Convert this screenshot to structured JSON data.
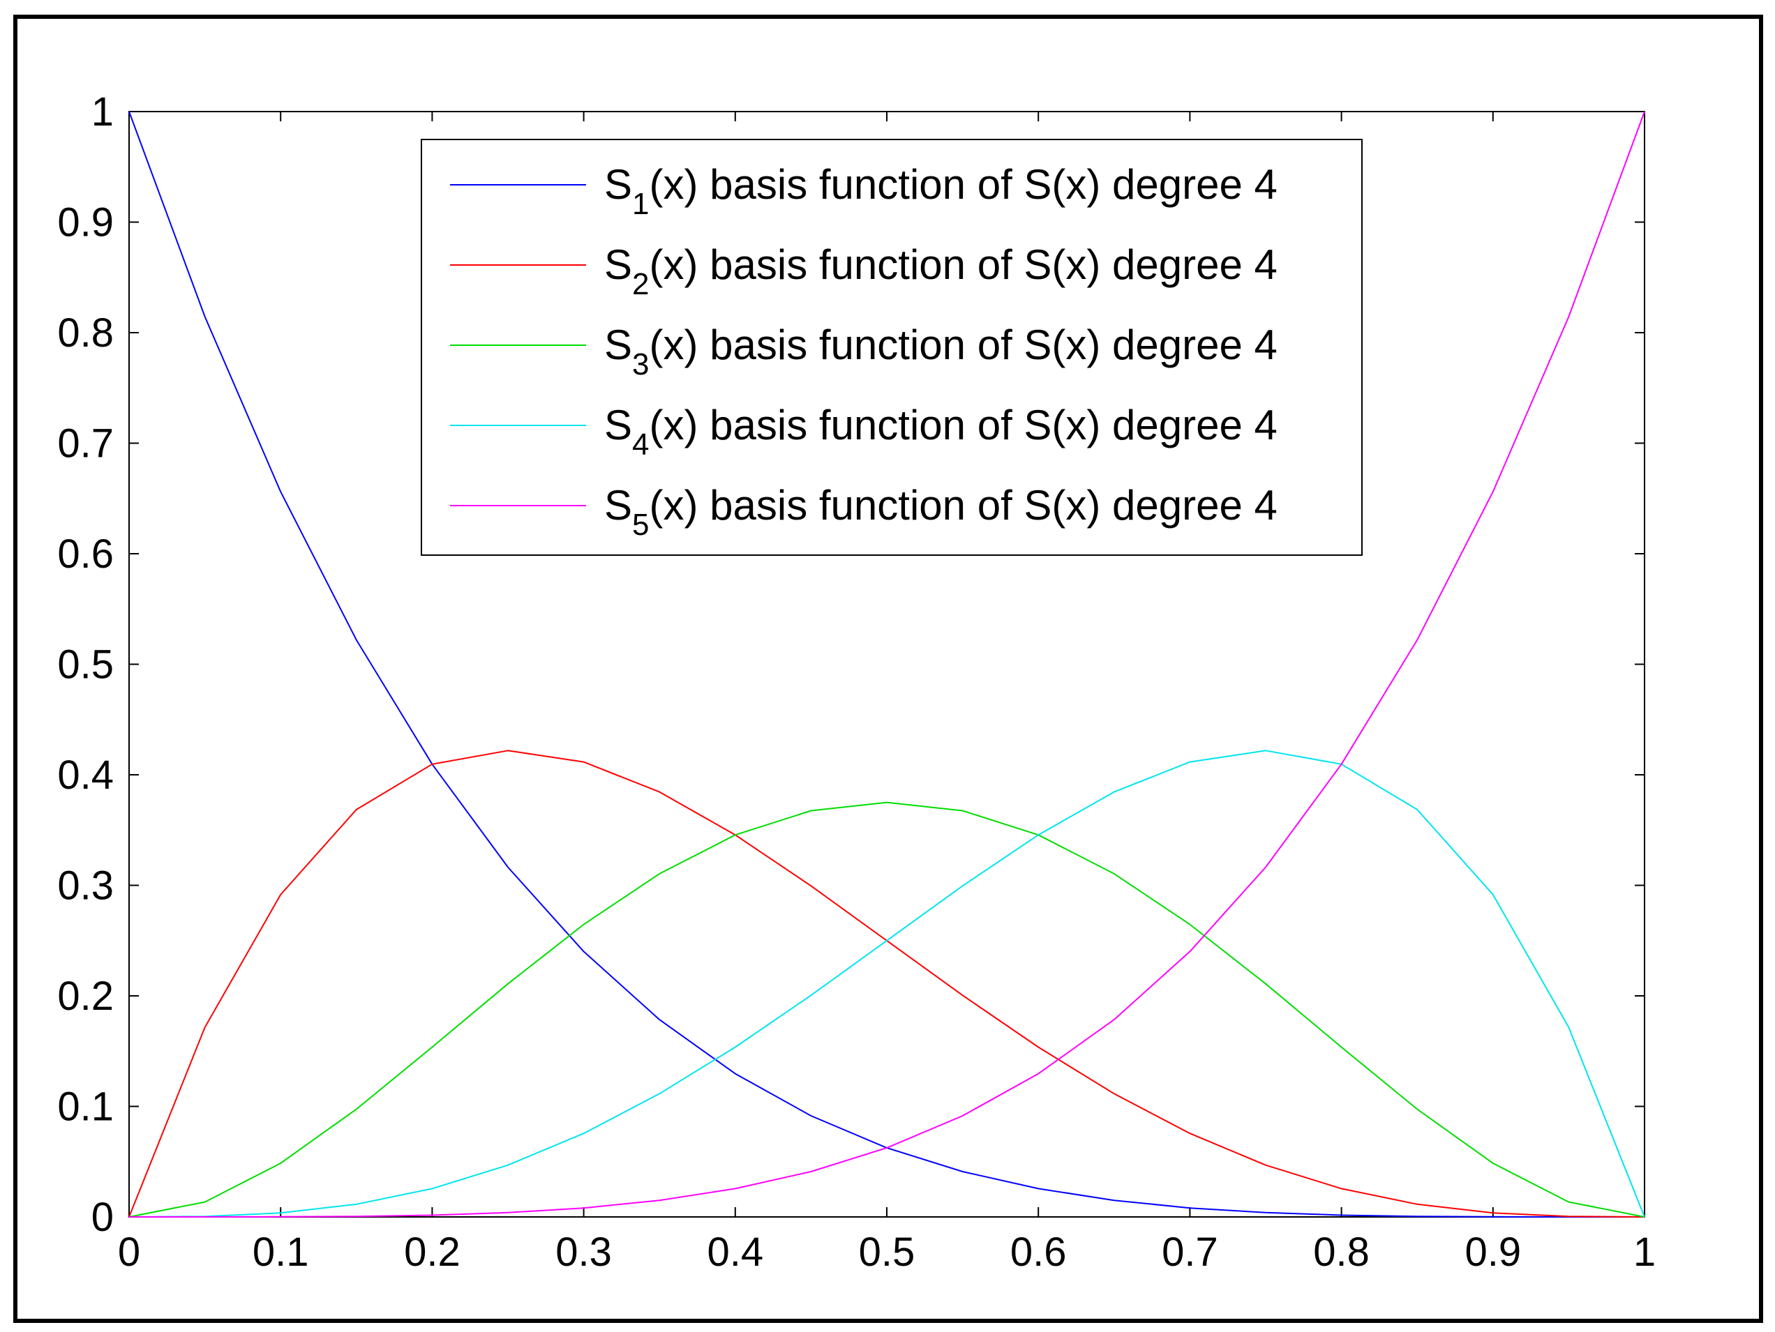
{
  "chart_data": {
    "type": "line",
    "xlim": [
      0,
      1
    ],
    "ylim": [
      0,
      1
    ],
    "x_ticks": [
      "0",
      "0.1",
      "0.2",
      "0.3",
      "0.4",
      "0.5",
      "0.6",
      "0.7",
      "0.8",
      "0.9",
      "1"
    ],
    "y_ticks": [
      "0",
      "0.1",
      "0.2",
      "0.3",
      "0.4",
      "0.5",
      "0.6",
      "0.7",
      "0.8",
      "0.9",
      "1"
    ],
    "grid": false,
    "legend_position": "top-center",
    "x": [
      0,
      0.05,
      0.1,
      0.15,
      0.2,
      0.25,
      0.3,
      0.35,
      0.4,
      0.45,
      0.5,
      0.55,
      0.6,
      0.65,
      0.7,
      0.75,
      0.8,
      0.85,
      0.9,
      0.95,
      1
    ],
    "series": [
      {
        "legend_sym": "S",
        "legend_sub": "1",
        "legend_rest": "(x) basis function of S(x) degree 4",
        "color": "#0000ff",
        "values": [
          1.0,
          0.8145,
          0.6561,
          0.522,
          0.4096,
          0.3164,
          0.2401,
          0.1785,
          0.1296,
          0.0915,
          0.0625,
          0.041,
          0.0256,
          0.015,
          0.0081,
          0.0039,
          0.0016,
          0.0005,
          0.0001,
          0.0,
          0.0
        ]
      },
      {
        "legend_sym": "S",
        "legend_sub": "2",
        "legend_rest": "(x) basis function of S(x) degree 4",
        "color": "#ff0000",
        "values": [
          0.0,
          0.1715,
          0.2916,
          0.3685,
          0.4096,
          0.4219,
          0.4116,
          0.3845,
          0.3456,
          0.2995,
          0.25,
          0.2005,
          0.1536,
          0.1115,
          0.0756,
          0.0469,
          0.0256,
          0.0115,
          0.0036,
          0.0005,
          0.0
        ]
      },
      {
        "legend_sym": "S",
        "legend_sub": "3",
        "legend_rest": "(x) basis function of S(x) degree 4",
        "color": "#00dd00",
        "values": [
          0.0,
          0.0135,
          0.0486,
          0.0975,
          0.1536,
          0.2109,
          0.2646,
          0.3105,
          0.3456,
          0.3675,
          0.375,
          0.3675,
          0.3456,
          0.3105,
          0.2646,
          0.2109,
          0.1536,
          0.0975,
          0.0486,
          0.0135,
          0.0
        ]
      },
      {
        "legend_sym": "S",
        "legend_sub": "4",
        "legend_rest": "(x) basis function of S(x) degree 4",
        "color": "#00e5ee",
        "values": [
          0.0,
          0.0005,
          0.0036,
          0.0115,
          0.0256,
          0.0469,
          0.0756,
          0.1115,
          0.1536,
          0.2005,
          0.25,
          0.2995,
          0.3456,
          0.3845,
          0.4116,
          0.4219,
          0.4096,
          0.3685,
          0.2916,
          0.1715,
          0.0
        ]
      },
      {
        "legend_sym": "S",
        "legend_sub": "5",
        "legend_rest": "(x) basis function of S(x) degree 4",
        "color": "#ff00ff",
        "values": [
          0.0,
          0.0,
          0.0001,
          0.0005,
          0.0016,
          0.0039,
          0.0081,
          0.015,
          0.0256,
          0.041,
          0.0625,
          0.0915,
          0.1296,
          0.1785,
          0.2401,
          0.3164,
          0.4096,
          0.522,
          0.6561,
          0.8145,
          1.0
        ]
      }
    ]
  }
}
